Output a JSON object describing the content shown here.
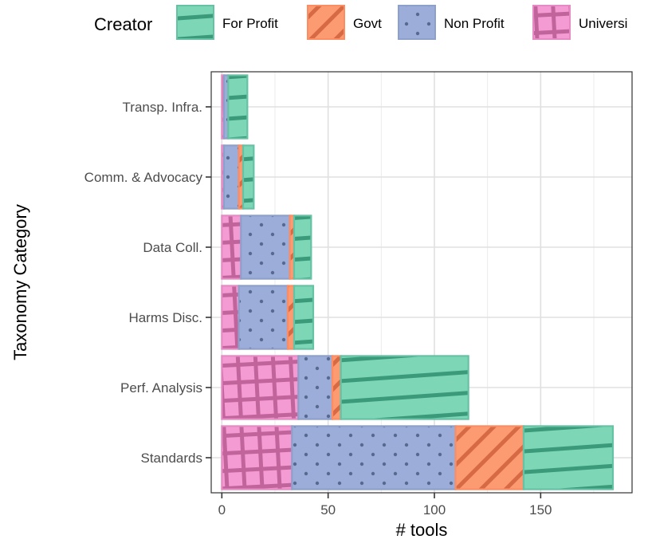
{
  "chart_data": {
    "type": "bar",
    "orientation": "horizontal",
    "stacked": true,
    "xlabel": "# tools",
    "ylabel": "Taxonomy Category",
    "xlim": [
      -5,
      193
    ],
    "xticks": [
      0,
      50,
      100,
      150
    ],
    "grid": true,
    "legend_position": "top",
    "legend_title": "Creator",
    "categories": [
      "Transp. Infra.",
      "Comm. & Advocacy",
      "Data Coll.",
      "Harms Disc.",
      "Perf. Analysis",
      "Standards"
    ],
    "series": [
      {
        "name": "Universi",
        "color": "#e78ac3",
        "pattern": "crosshatch",
        "values": [
          1,
          1,
          9,
          8,
          36,
          33
        ]
      },
      {
        "name": "Non Profit",
        "color": "#8da0cb",
        "pattern": "dots",
        "values": [
          2,
          7,
          23,
          23,
          16,
          77
        ]
      },
      {
        "name": "Govt",
        "color": "#fc8d62",
        "pattern": "stripes",
        "values": [
          0,
          2,
          2,
          3,
          4,
          32
        ]
      },
      {
        "name": "For Profit",
        "color": "#66c2a5",
        "pattern": "stripes-shallow",
        "values": [
          9,
          5,
          8,
          9,
          60,
          42
        ]
      }
    ]
  }
}
